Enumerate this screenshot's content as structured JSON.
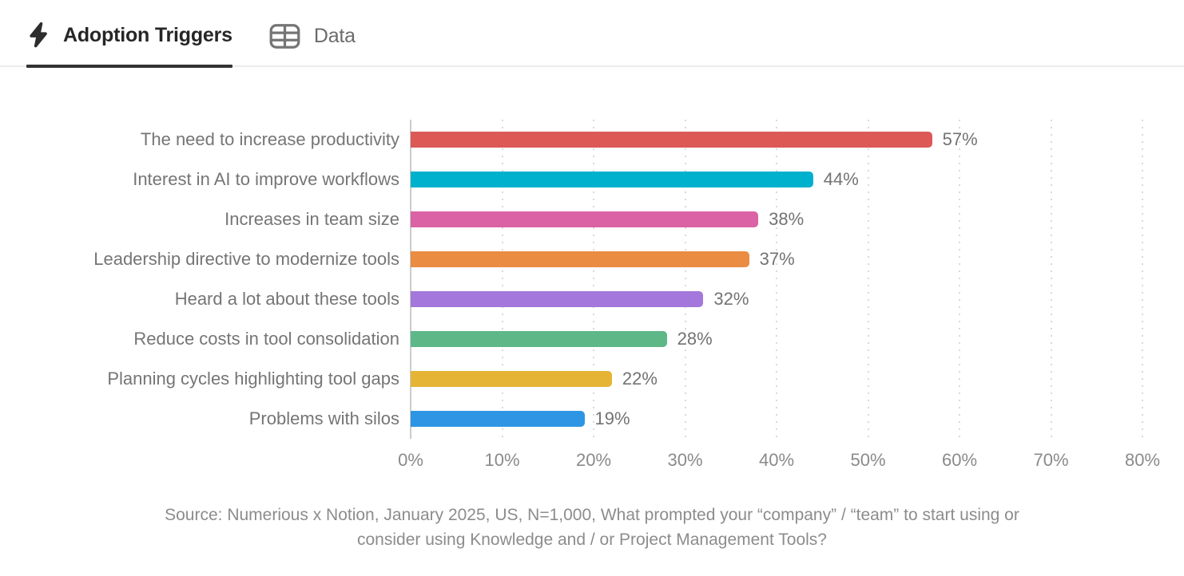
{
  "tabs": [
    {
      "label": "Adoption Triggers",
      "icon": "bolt-icon",
      "active": true
    },
    {
      "label": "Data",
      "icon": "table-icon",
      "active": false
    }
  ],
  "chart_data": {
    "type": "bar",
    "orientation": "horizontal",
    "title": "Adoption Triggers",
    "categories": [
      "The need to increase productivity",
      "Interest in AI to improve workflows",
      "Increases in team size",
      "Leadership directive to modernize tools",
      "Heard a lot about these tools",
      "Reduce costs in tool consolidation",
      "Planning cycles highlighting tool gaps",
      "Problems with silos"
    ],
    "values": [
      57,
      44,
      38,
      37,
      32,
      28,
      22,
      19
    ],
    "value_labels": [
      "57%",
      "44%",
      "38%",
      "37%",
      "32%",
      "28%",
      "22%",
      "19%"
    ],
    "bar_colors": [
      "#DC5955",
      "#00B1CD",
      "#DB62A4",
      "#EA8C42",
      "#A377DB",
      "#5EB787",
      "#E5B434",
      "#2E95E5"
    ],
    "xlabel": "",
    "ylabel": "",
    "xlim": [
      0,
      80
    ],
    "xticks": [
      "0%",
      "10%",
      "20%",
      "30%",
      "40%",
      "50%",
      "60%",
      "70%",
      "80%"
    ],
    "grid": "vertical-dotted",
    "legend": "none"
  },
  "source": {
    "lines": [
      "Source: Numerious x Notion, January 2025, US, N=1,000, What prompted your “company” / “team” to start using or",
      "consider using Knowledge and / or Project Management Tools?"
    ]
  },
  "colors": {
    "active_tab_text": "#262626",
    "inactive_tab_text": "#6B6B6B",
    "active_tab_underline": "#333333",
    "tabbar_border": "#ECECEC",
    "category_label": "#757575",
    "value_label": "#737373",
    "xtick_label": "#8A8A8A",
    "gridline": "#DADADA",
    "axisline": "#CBCBCB",
    "source_text": "#8C8C8C"
  }
}
